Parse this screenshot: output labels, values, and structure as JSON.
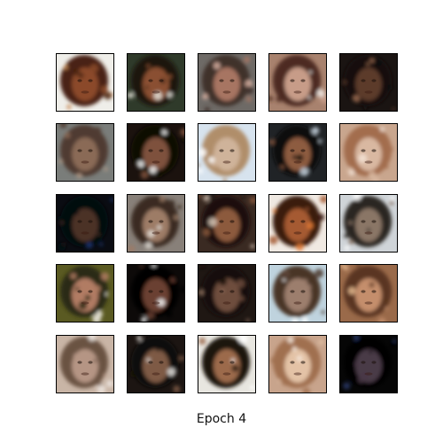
{
  "figure": {
    "caption": "Epoch 4",
    "grid": {
      "rows": 5,
      "cols": 5
    },
    "samples": [
      {
        "bg": "#efeee9",
        "face": "#8b4a2a",
        "hair": "#4a2412",
        "accent": "#c98a55"
      },
      {
        "bg": "#2f3a2a",
        "face": "#8a5030",
        "hair": "#1b140e",
        "accent": "#e3e0d8"
      },
      {
        "bg": "#6e6a66",
        "face": "#a77462",
        "hair": "#40302a",
        "accent": "#d9b1a2"
      },
      {
        "bg": "#a8826e",
        "face": "#c79c88",
        "hair": "#4d2a21",
        "accent": "#f2ede9"
      },
      {
        "bg": "#1a1412",
        "face": "#5c3a2c",
        "hair": "#120c09",
        "accent": "#a17053"
      },
      {
        "bg": "#7a7d7a",
        "face": "#8a6a56",
        "hair": "#4f3b30",
        "accent": "#b39a86"
      },
      {
        "bg": "#1b120e",
        "face": "#7e513c",
        "hair": "#0c0805",
        "accent": "#f5f5f5"
      },
      {
        "bg": "#d7e3ee",
        "face": "#cfb39a",
        "hair": "#b08e6b",
        "accent": "#ffffff"
      },
      {
        "bg": "#202326",
        "face": "#8d5b40",
        "hair": "#0c0a09",
        "accent": "#c9d6e2"
      },
      {
        "bg": "#c9a68e",
        "face": "#d9b8a1",
        "hair": "#a36d4e",
        "accent": "#f3e3d6"
      },
      {
        "bg": "#0a0c12",
        "face": "#4b3326",
        "hair": "#06080f",
        "accent": "#1e3a7a"
      },
      {
        "bg": "#888079",
        "face": "#9d7b66",
        "hair": "#3b2b22",
        "accent": "#e2ddd6"
      },
      {
        "bg": "#3a2a22",
        "face": "#8c5a3d",
        "hair": "#1a100b",
        "accent": "#d7c7b7"
      },
      {
        "bg": "#f0e9e2",
        "face": "#a55a33",
        "hair": "#3a1a0e",
        "accent": "#e07a35"
      },
      {
        "bg": "#cfd4d8",
        "face": "#8a7666",
        "hair": "#2b2522",
        "accent": "#ffffff"
      },
      {
        "bg": "#5a5a22",
        "face": "#b17c63",
        "hair": "#2a2a12",
        "accent": "#f2efe8"
      },
      {
        "bg": "#0d0a09",
        "face": "#6a4030",
        "hair": "#050403",
        "accent": "#f1f1f1"
      },
      {
        "bg": "#1f1713",
        "face": "#6e4e3d",
        "hair": "#140d09",
        "accent": "#9a7a66"
      },
      {
        "bg": "#bfd3de",
        "face": "#9c7e6d",
        "hair": "#4a3528",
        "accent": "#ffffff"
      },
      {
        "bg": "#9a6a4a",
        "face": "#c48e6c",
        "hair": "#5a3520",
        "accent": "#e5b98f"
      },
      {
        "bg": "#c9b5a6",
        "face": "#b59584",
        "hair": "#6b5243",
        "accent": "#ede6e0"
      },
      {
        "bg": "#1c1512",
        "face": "#7e5a45",
        "hair": "#0d0907",
        "accent": "#e8e4e0"
      },
      {
        "bg": "#e8e6e0",
        "face": "#9c6a4c",
        "hair": "#1e130d",
        "accent": "#ffffff"
      },
      {
        "bg": "#c8a48c",
        "face": "#e3c2a6",
        "hair": "#a07050",
        "accent": "#f6e7da"
      },
      {
        "bg": "#060606",
        "face": "#4a3a46",
        "hair": "#030303",
        "accent": "#2a3a6a"
      }
    ]
  }
}
